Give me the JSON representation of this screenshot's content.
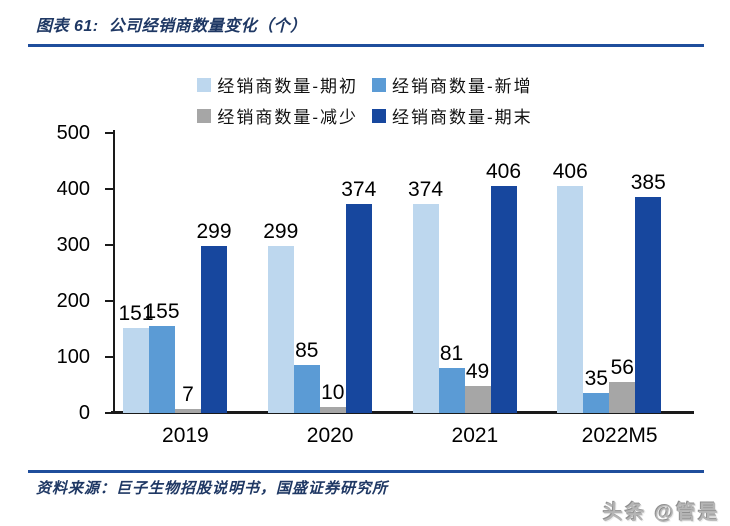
{
  "figure": {
    "label": "图表 61:",
    "title": "公司经销商数量变化（个）"
  },
  "source": {
    "text": "资料来源：巨子生物招股说明书，国盛证券研究所"
  },
  "watermark": "头条 @管是",
  "colors": {
    "title_navy": "#1F3864",
    "divider_navy": "#1F4E9C",
    "series_qichu": "#BDD7EE",
    "series_xinzeng": "#5B9BD5",
    "series_jianshao": "#A6A6A6",
    "series_qimo": "#17479E",
    "axis": "#1a1a1a",
    "label_text": "#000000"
  },
  "chart_data": {
    "type": "bar",
    "title": "公司经销商数量变化（个）",
    "categories": [
      "2019",
      "2020",
      "2021",
      "2022M5"
    ],
    "series": [
      {
        "name": "经销商数量-期初",
        "color": "#BDD7EE",
        "values": [
          151,
          299,
          374,
          406
        ]
      },
      {
        "name": "经销商数量-新增",
        "color": "#5B9BD5",
        "values": [
          155,
          85,
          81,
          35
        ]
      },
      {
        "name": "经销商数量-减少",
        "color": "#A6A6A6",
        "values": [
          7,
          10,
          49,
          56
        ]
      },
      {
        "name": "经销商数量-期末",
        "color": "#17479E",
        "values": [
          299,
          374,
          406,
          385
        ]
      }
    ],
    "xlabel": "",
    "ylabel": "",
    "ylim": [
      0,
      500
    ],
    "yticks": [
      0,
      100,
      200,
      300,
      400,
      500
    ],
    "grid": false,
    "legend_position": "top",
    "legend_rows": [
      [
        0,
        1
      ],
      [
        2,
        3
      ]
    ],
    "data_labels": true
  }
}
